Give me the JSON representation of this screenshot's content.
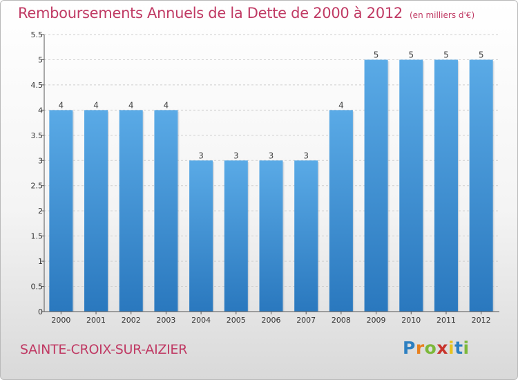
{
  "header": {
    "title": "Remboursements Annuels de la Dette de 2000 à 2012",
    "unit": "(en milliers d'€)"
  },
  "footer": {
    "commune": "SAINTE-CROIX-SUR-AIZIER",
    "logo_letters": [
      {
        "ch": "P",
        "color": "#2c7fc1"
      },
      {
        "ch": "r",
        "color": "#e8801e"
      },
      {
        "ch": "o",
        "color": "#7cb83a"
      },
      {
        "ch": "x",
        "color": "#c8342c"
      },
      {
        "ch": "i",
        "color": "#e8c21e"
      },
      {
        "ch": "t",
        "color": "#2c7fc1"
      },
      {
        "ch": "i",
        "color": "#7cb83a"
      }
    ]
  },
  "chart_data": {
    "type": "bar",
    "title": "Remboursements Annuels de la Dette de 2000 à 2012",
    "xlabel": "",
    "ylabel": "",
    "ylim": [
      0,
      5.5
    ],
    "yticks": [
      "0",
      "0.5",
      "1",
      "1.5",
      "2",
      "2.5",
      "3",
      "3.5",
      "4",
      "4.5",
      "5",
      "5.5"
    ],
    "grid": true,
    "categories": [
      "2000",
      "2001",
      "2002",
      "2003",
      "2004",
      "2005",
      "2006",
      "2007",
      "2008",
      "2009",
      "2010",
      "2011",
      "2012"
    ],
    "values": [
      4,
      4,
      4,
      4,
      3,
      3,
      3,
      3,
      4,
      5,
      5,
      5,
      5
    ],
    "data_labels": [
      "4",
      "4",
      "4",
      "4",
      "3",
      "3",
      "3",
      "3",
      "4",
      "5",
      "5",
      "5",
      "5"
    ],
    "colors": {
      "bar_top": "#5aaae6",
      "bar_bottom": "#2a78be",
      "grid": "#cfcfcf"
    }
  }
}
